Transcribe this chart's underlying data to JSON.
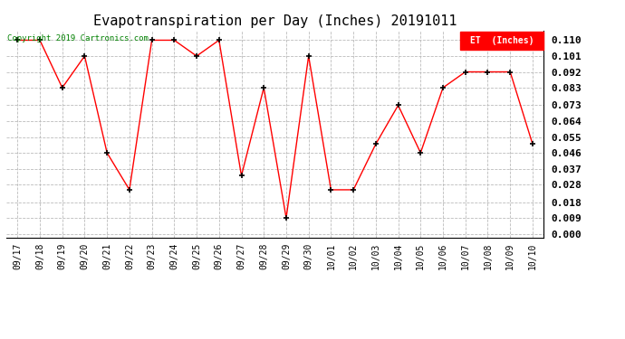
{
  "title": "Evapotranspiration per Day (Inches) 20191011",
  "copyright": "Copyright 2019 Cartronics.com",
  "legend_label": "ET  (Inches)",
  "dates": [
    "09/17",
    "09/18",
    "09/19",
    "09/20",
    "09/21",
    "09/22",
    "09/23",
    "09/24",
    "09/25",
    "09/26",
    "09/27",
    "09/28",
    "09/29",
    "09/30",
    "10/01",
    "10/02",
    "10/03",
    "10/04",
    "10/05",
    "10/06",
    "10/07",
    "10/08",
    "10/09",
    "10/10"
  ],
  "values": [
    0.11,
    0.11,
    0.083,
    0.101,
    0.046,
    0.025,
    0.11,
    0.11,
    0.101,
    0.11,
    0.033,
    0.083,
    0.009,
    0.101,
    0.025,
    0.025,
    0.051,
    0.073,
    0.046,
    0.083,
    0.092,
    0.092,
    0.092,
    0.051
  ],
  "ylim_min": 0.0,
  "ylim_max": 0.11,
  "yticks": [
    0.0,
    0.009,
    0.018,
    0.028,
    0.037,
    0.046,
    0.055,
    0.064,
    0.073,
    0.083,
    0.092,
    0.101,
    0.11
  ],
  "line_color": "red",
  "marker": "+",
  "marker_color": "black",
  "background_color": "white",
  "grid_color": "#bbbbbb",
  "title_fontsize": 11,
  "legend_bg": "red",
  "legend_fg": "white",
  "copyright_color": "green",
  "tick_fontsize": 7,
  "ytick_fontsize": 8
}
